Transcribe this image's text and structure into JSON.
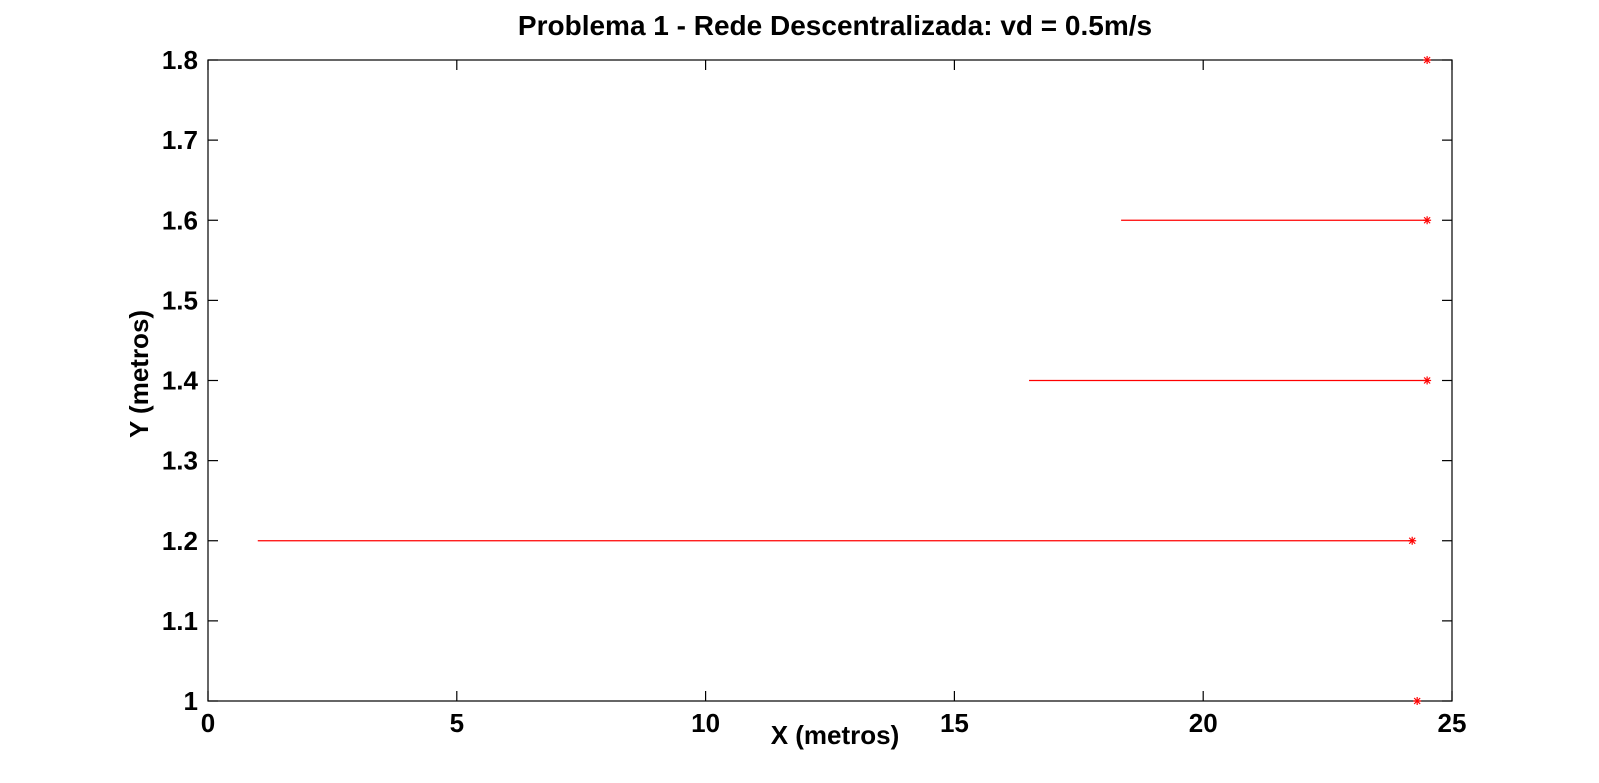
{
  "chart_data": {
    "type": "line",
    "title": "Problema 1 - Rede Descentralizada: vd = 0.5m/s",
    "xlabel": "X (metros)",
    "ylabel": "Y (metros)",
    "xlim": [
      0,
      25
    ],
    "ylim": [
      1,
      1.8
    ],
    "xticks": [
      0,
      5,
      10,
      15,
      20,
      25
    ],
    "xtick_labels": [
      "0",
      "5",
      "10",
      "15",
      "20",
      "25"
    ],
    "yticks": [
      1,
      1.1,
      1.2,
      1.3,
      1.4,
      1.5,
      1.6,
      1.7,
      1.8
    ],
    "ytick_labels": [
      "1",
      "1.1",
      "1.2",
      "1.3",
      "1.4",
      "1.5",
      "1.6",
      "1.7",
      "1.8"
    ],
    "grid": false,
    "line_color": "#ff0000",
    "series": [
      {
        "x": [
          1.0,
          24.2
        ],
        "y": [
          1.2,
          1.2
        ],
        "end_marker": "*"
      },
      {
        "x": [
          16.5,
          24.5
        ],
        "y": [
          1.4,
          1.4
        ],
        "end_marker": "*"
      },
      {
        "x": [
          18.35,
          24.5
        ],
        "y": [
          1.6,
          1.6
        ],
        "end_marker": "*"
      },
      {
        "x": [
          24.5
        ],
        "y": [
          1.8
        ],
        "end_marker": "*"
      },
      {
        "x": [
          24.3
        ],
        "y": [
          1.0
        ],
        "end_marker": "*"
      }
    ]
  }
}
